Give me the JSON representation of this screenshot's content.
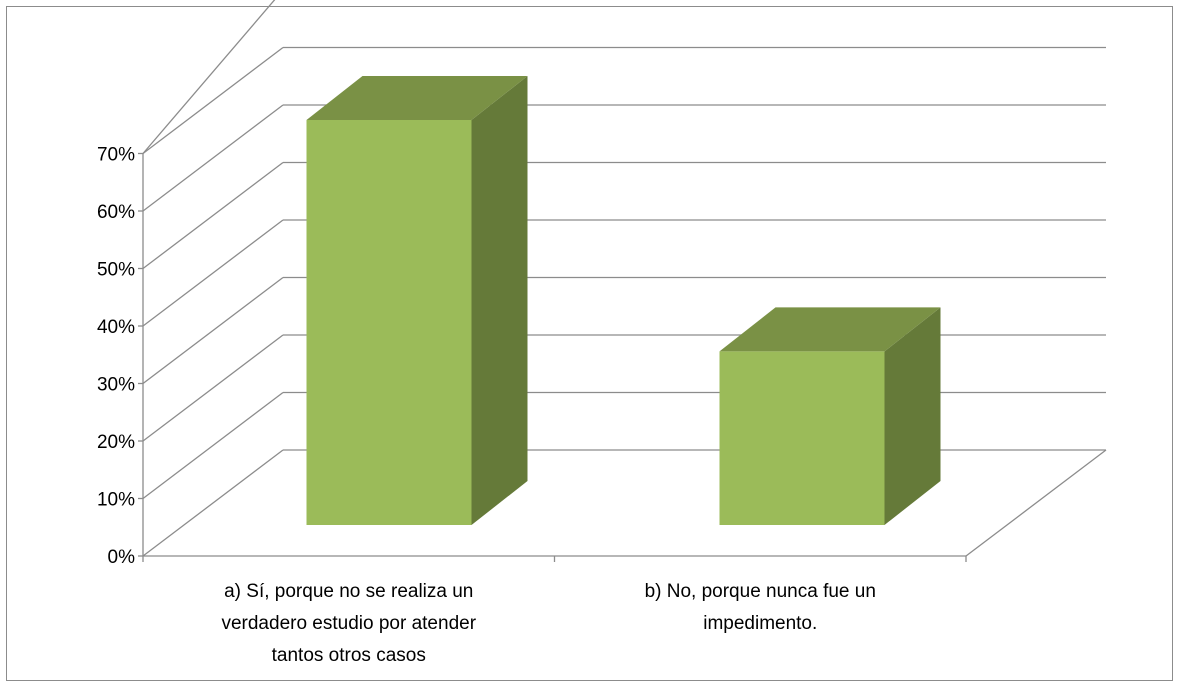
{
  "chart_data": {
    "type": "bar",
    "style": "3d-column",
    "categories": [
      [
        "a) Sí, porque no se realiza un",
        "verdadero estudio por atender",
        "tantos otros casos"
      ],
      [
        "b) No, porque nunca fue un",
        "impedimento."
      ]
    ],
    "values": [
      70,
      30
    ],
    "ylim": [
      0,
      70
    ],
    "yticks": [
      "0%",
      "10%",
      "20%",
      "30%",
      "40%",
      "50%",
      "60%",
      "70%"
    ],
    "grid": true,
    "legend": "none",
    "colors": {
      "front": "#9bbb59",
      "side": "#657a39",
      "top": "#7a9145",
      "grid": "#8c8c8c"
    }
  }
}
